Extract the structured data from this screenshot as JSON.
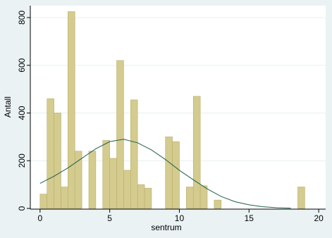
{
  "chart_data": {
    "type": "histogram",
    "x_label": "sentrum",
    "y_label": "Antall",
    "bins": [
      0,
      0.5,
      1,
      1.5,
      2,
      2.5,
      3,
      3.5,
      4,
      4.5,
      5,
      5.5,
      6,
      6.5,
      7,
      7.5,
      8,
      8.5,
      9,
      9.5,
      10,
      10.5,
      11,
      11.5,
      12,
      12.5,
      13,
      13.5,
      14,
      14.5,
      15,
      15.5,
      16,
      16.5,
      17,
      17.5,
      18,
      18.5,
      19
    ],
    "values": [
      60,
      460,
      400,
      90,
      825,
      240,
      0,
      240,
      0,
      285,
      210,
      620,
      160,
      455,
      100,
      85,
      0,
      0,
      300,
      280,
      0,
      90,
      470,
      95,
      0,
      35,
      0,
      0,
      0,
      0,
      0,
      0,
      0,
      0,
      0,
      0,
      0,
      90
    ],
    "color": "#d4cb8e",
    "curve": {
      "color": "#1f5f4a",
      "x": [
        0,
        1,
        2,
        3,
        4,
        5,
        6,
        7,
        8,
        9,
        10,
        11,
        12,
        13,
        14,
        15,
        16,
        17,
        18
      ],
      "y": [
        105,
        135,
        170,
        210,
        250,
        280,
        290,
        275,
        245,
        205,
        160,
        120,
        82,
        50,
        28,
        15,
        7,
        3,
        1
      ]
    },
    "xlim": [
      -0.7,
      20.5
    ],
    "ylim": [
      0,
      850
    ],
    "xticks": [
      0,
      5,
      10,
      15,
      20
    ],
    "yticks": [
      0,
      200,
      400,
      600,
      800
    ],
    "grid": true
  }
}
